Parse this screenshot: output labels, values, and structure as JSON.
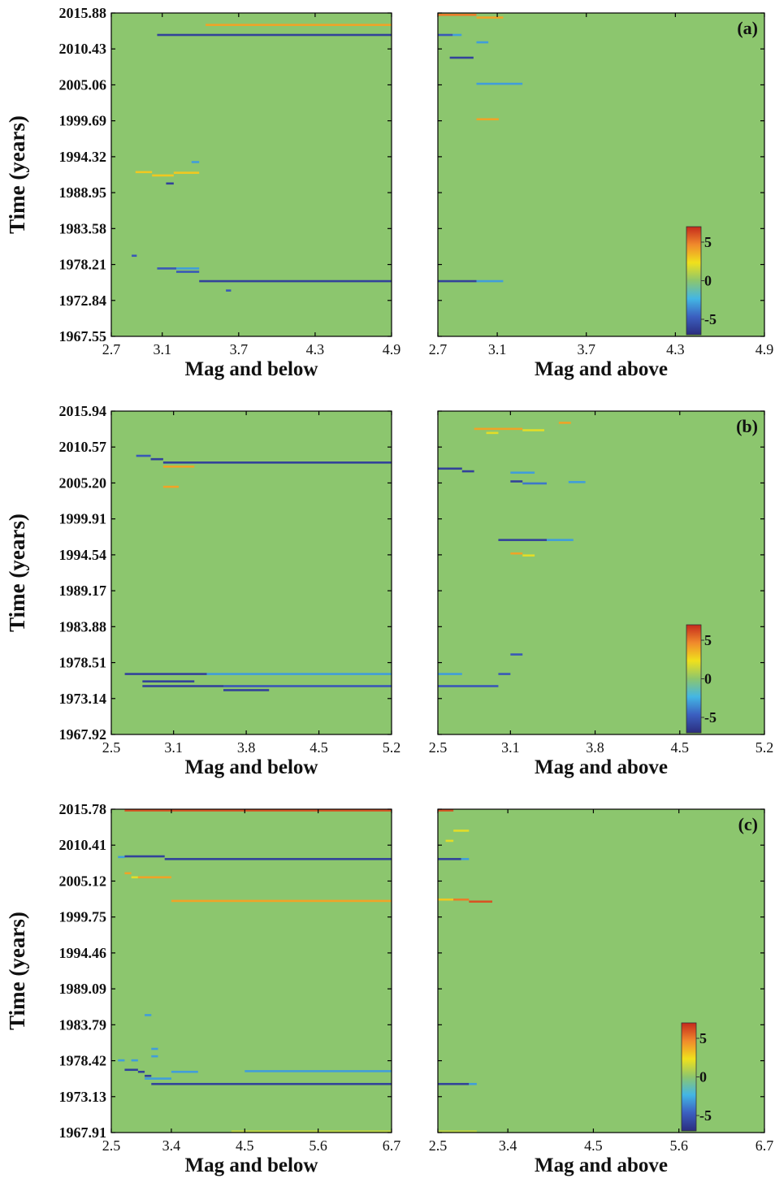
{
  "figure": {
    "ylabel": "Time (years)",
    "xlabel_left": "Mag and below",
    "xlabel_right": "Mag and above"
  },
  "colormap": {
    "stops": [
      "#2b2d7e",
      "#3b5fc0",
      "#43b6e4",
      "#8cc66e",
      "#f0e11c",
      "#f08a2c",
      "#c52a1c"
    ],
    "background": "#8cc66e"
  },
  "chart_data": [
    {
      "type": "heatmap",
      "panel": "a",
      "side": "below",
      "panel_label": "",
      "xlabel": "Mag and below",
      "ylabel": "Time (years)",
      "xlim": [
        2.7,
        4.9
      ],
      "xticks": [
        "2.7",
        "3.1",
        "3.7",
        "4.3",
        "4.9"
      ],
      "ylim": [
        1967.55,
        2015.88
      ],
      "yticks": [
        "1967.55",
        "1972.84",
        "1978.21",
        "1983.58",
        "1988.95",
        "1994.32",
        "1999.69",
        "2005.06",
        "2010.43",
        "2015.88"
      ],
      "segments": [
        {
          "x0": 3.44,
          "x1": 4.9,
          "y": 2014.1,
          "v": 4
        },
        {
          "x0": 3.06,
          "x1": 4.9,
          "y": 2012.6,
          "v": -6
        },
        {
          "x0": 3.33,
          "x1": 3.39,
          "y": 1993.6,
          "v": -3
        },
        {
          "x0": 2.89,
          "x1": 3.02,
          "y": 1992.1,
          "v": 3
        },
        {
          "x0": 3.02,
          "x1": 3.19,
          "y": 1991.6,
          "v": 3
        },
        {
          "x0": 3.19,
          "x1": 3.39,
          "y": 1992.0,
          "v": 3
        },
        {
          "x0": 3.13,
          "x1": 3.19,
          "y": 1990.4,
          "v": -6
        },
        {
          "x0": 2.86,
          "x1": 2.9,
          "y": 1979.6,
          "v": -5
        },
        {
          "x0": 3.06,
          "x1": 3.21,
          "y": 1977.7,
          "v": -5
        },
        {
          "x0": 3.21,
          "x1": 3.39,
          "y": 1977.2,
          "v": -5
        },
        {
          "x0": 3.21,
          "x1": 3.39,
          "y": 1977.7,
          "v": -3
        },
        {
          "x0": 3.39,
          "x1": 4.9,
          "y": 1975.8,
          "v": -6
        },
        {
          "x0": 3.6,
          "x1": 3.64,
          "y": 1974.4,
          "v": -5
        }
      ]
    },
    {
      "type": "heatmap",
      "panel": "a",
      "side": "above",
      "panel_label": "(a)",
      "xlabel": "Mag and above",
      "ylabel": "",
      "xlim": [
        2.7,
        4.9
      ],
      "xticks": [
        "2.7",
        "3.1",
        "3.7",
        "4.3",
        "4.9"
      ],
      "ylim": [
        1967.55,
        2015.88
      ],
      "segments": [
        {
          "x0": 2.7,
          "x1": 2.96,
          "y": 2015.6,
          "v": 5
        },
        {
          "x0": 2.96,
          "x1": 3.14,
          "y": 2015.2,
          "v": 4
        },
        {
          "x0": 2.7,
          "x1": 2.8,
          "y": 2012.6,
          "v": -5
        },
        {
          "x0": 2.8,
          "x1": 2.86,
          "y": 2012.6,
          "v": -3
        },
        {
          "x0": 2.96,
          "x1": 3.04,
          "y": 2011.5,
          "v": -3
        },
        {
          "x0": 2.78,
          "x1": 2.94,
          "y": 2009.2,
          "v": -6
        },
        {
          "x0": 2.96,
          "x1": 3.27,
          "y": 2005.3,
          "v": -3
        },
        {
          "x0": 2.96,
          "x1": 3.11,
          "y": 2000.0,
          "v": 4
        },
        {
          "x0": 2.7,
          "x1": 2.96,
          "y": 1975.8,
          "v": -6
        },
        {
          "x0": 2.96,
          "x1": 3.14,
          "y": 1975.8,
          "v": -3
        }
      ],
      "colorbar": {
        "min": -7,
        "max": 7,
        "ticks": [
          "5",
          "0",
          "-5"
        ]
      }
    },
    {
      "type": "heatmap",
      "panel": "b",
      "side": "below",
      "panel_label": "",
      "xlabel": "Mag and below",
      "ylabel": "Time (years)",
      "xlim": [
        2.5,
        5.2
      ],
      "xticks": [
        "2.5",
        "3.1",
        "3.8",
        "4.5",
        "5.2"
      ],
      "ylim": [
        1967.92,
        2015.94
      ],
      "yticks": [
        "1967.92",
        "1973.14",
        "1978.51",
        "1983.88",
        "1989.17",
        "1994.54",
        "1999.91",
        "2005.20",
        "2010.57",
        "2015.94"
      ],
      "segments": [
        {
          "x0": 2.74,
          "x1": 2.88,
          "y": 2009.3,
          "v": -5
        },
        {
          "x0": 2.88,
          "x1": 3.0,
          "y": 2008.8,
          "v": -6
        },
        {
          "x0": 3.0,
          "x1": 5.2,
          "y": 2008.3,
          "v": -6
        },
        {
          "x0": 3.0,
          "x1": 3.3,
          "y": 2007.7,
          "v": 4
        },
        {
          "x0": 3.0,
          "x1": 3.15,
          "y": 2004.7,
          "v": 4
        },
        {
          "x0": 2.63,
          "x1": 3.42,
          "y": 1976.9,
          "v": -6
        },
        {
          "x0": 3.42,
          "x1": 5.2,
          "y": 1976.9,
          "v": -3
        },
        {
          "x0": 2.8,
          "x1": 3.3,
          "y": 1975.8,
          "v": -6
        },
        {
          "x0": 2.8,
          "x1": 3.58,
          "y": 1975.1,
          "v": -6
        },
        {
          "x0": 3.58,
          "x1": 5.2,
          "y": 1975.1,
          "v": -5
        },
        {
          "x0": 3.58,
          "x1": 4.02,
          "y": 1974.5,
          "v": -6
        }
      ]
    },
    {
      "type": "heatmap",
      "panel": "b",
      "side": "above",
      "panel_label": "(b)",
      "xlabel": "Mag and above",
      "ylabel": "",
      "xlim": [
        2.5,
        5.2
      ],
      "xticks": [
        "2.5",
        "3.1",
        "3.8",
        "4.5",
        "5.2"
      ],
      "ylim": [
        1967.92,
        2015.94
      ],
      "segments": [
        {
          "x0": 2.8,
          "x1": 3.2,
          "y": 2013.3,
          "v": 4
        },
        {
          "x0": 2.9,
          "x1": 3.0,
          "y": 2012.7,
          "v": 2
        },
        {
          "x0": 3.2,
          "x1": 3.38,
          "y": 2013.1,
          "v": 2
        },
        {
          "x0": 3.5,
          "x1": 3.6,
          "y": 2014.2,
          "v": 4
        },
        {
          "x0": 2.5,
          "x1": 2.7,
          "y": 2007.4,
          "v": -6
        },
        {
          "x0": 2.7,
          "x1": 2.8,
          "y": 2007.0,
          "v": -6
        },
        {
          "x0": 3.1,
          "x1": 3.3,
          "y": 2006.8,
          "v": -3
        },
        {
          "x0": 3.1,
          "x1": 3.2,
          "y": 2005.5,
          "v": -6
        },
        {
          "x0": 3.2,
          "x1": 3.4,
          "y": 2005.2,
          "v": -4
        },
        {
          "x0": 3.58,
          "x1": 3.72,
          "y": 2005.4,
          "v": -3
        },
        {
          "x0": 3.0,
          "x1": 3.4,
          "y": 1996.8,
          "v": -6
        },
        {
          "x0": 3.4,
          "x1": 3.62,
          "y": 1996.8,
          "v": -3
        },
        {
          "x0": 3.1,
          "x1": 3.2,
          "y": 1994.8,
          "v": 4
        },
        {
          "x0": 3.2,
          "x1": 3.3,
          "y": 1994.5,
          "v": 2
        },
        {
          "x0": 3.1,
          "x1": 3.2,
          "y": 1979.8,
          "v": -5
        },
        {
          "x0": 2.5,
          "x1": 2.7,
          "y": 1976.9,
          "v": -3
        },
        {
          "x0": 3.0,
          "x1": 3.1,
          "y": 1976.9,
          "v": -5
        },
        {
          "x0": 2.5,
          "x1": 3.0,
          "y": 1975.1,
          "v": -5
        }
      ],
      "colorbar": {
        "min": -7,
        "max": 7,
        "ticks": [
          "5",
          "0",
          "-5"
        ]
      }
    },
    {
      "type": "heatmap",
      "panel": "c",
      "side": "below",
      "panel_label": "",
      "xlabel": "Mag and below",
      "ylabel": "Time (years)",
      "xlim": [
        2.5,
        6.7
      ],
      "xticks": [
        "2.5",
        "3.4",
        "4.5",
        "5.6",
        "6.7"
      ],
      "ylim": [
        1967.91,
        2015.78
      ],
      "yticks": [
        "1967.91",
        "1973.13",
        "1978.42",
        "1983.79",
        "1989.09",
        "1994.46",
        "1999.75",
        "2005.12",
        "2010.41",
        "2015.78"
      ],
      "segments": [
        {
          "x0": 2.7,
          "x1": 6.7,
          "y": 2015.6,
          "v": 6
        },
        {
          "x0": 2.6,
          "x1": 2.7,
          "y": 2008.7,
          "v": -3
        },
        {
          "x0": 2.7,
          "x1": 3.3,
          "y": 2008.8,
          "v": -6
        },
        {
          "x0": 3.3,
          "x1": 6.7,
          "y": 2008.4,
          "v": -6
        },
        {
          "x0": 2.7,
          "x1": 2.8,
          "y": 2006.3,
          "v": 4
        },
        {
          "x0": 2.8,
          "x1": 2.9,
          "y": 2005.7,
          "v": 2
        },
        {
          "x0": 2.9,
          "x1": 3.4,
          "y": 2005.7,
          "v": 4
        },
        {
          "x0": 3.4,
          "x1": 6.7,
          "y": 2002.2,
          "v": 4
        },
        {
          "x0": 3.0,
          "x1": 3.1,
          "y": 1985.3,
          "v": -3
        },
        {
          "x0": 3.1,
          "x1": 3.2,
          "y": 1980.3,
          "v": -3
        },
        {
          "x0": 3.1,
          "x1": 3.2,
          "y": 1979.2,
          "v": -3
        },
        {
          "x0": 2.6,
          "x1": 2.7,
          "y": 1978.6,
          "v": -3
        },
        {
          "x0": 2.8,
          "x1": 2.9,
          "y": 1978.6,
          "v": -3
        },
        {
          "x0": 2.7,
          "x1": 2.9,
          "y": 1977.2,
          "v": -6
        },
        {
          "x0": 2.9,
          "x1": 3.0,
          "y": 1976.9,
          "v": -6
        },
        {
          "x0": 3.0,
          "x1": 3.1,
          "y": 1976.3,
          "v": -6
        },
        {
          "x0": 3.0,
          "x1": 3.4,
          "y": 1975.9,
          "v": -3
        },
        {
          "x0": 3.4,
          "x1": 3.8,
          "y": 1976.9,
          "v": -3
        },
        {
          "x0": 4.5,
          "x1": 6.7,
          "y": 1977.0,
          "v": -3
        },
        {
          "x0": 3.1,
          "x1": 6.7,
          "y": 1975.1,
          "v": -6
        },
        {
          "x0": 4.3,
          "x1": 6.7,
          "y": 1968.1,
          "v": 1
        }
      ]
    },
    {
      "type": "heatmap",
      "panel": "c",
      "side": "above",
      "panel_label": "(c)",
      "xlabel": "Mag and above",
      "ylabel": "",
      "xlim": [
        2.5,
        6.7
      ],
      "xticks": [
        "2.5",
        "3.4",
        "4.5",
        "5.6",
        "6.7"
      ],
      "ylim": [
        1967.91,
        2015.78
      ],
      "segments": [
        {
          "x0": 2.5,
          "x1": 2.7,
          "y": 2015.6,
          "v": 6
        },
        {
          "x0": 2.7,
          "x1": 2.9,
          "y": 2012.6,
          "v": 2
        },
        {
          "x0": 2.6,
          "x1": 2.7,
          "y": 2011.1,
          "v": 2
        },
        {
          "x0": 2.5,
          "x1": 2.8,
          "y": 2008.4,
          "v": -6
        },
        {
          "x0": 2.8,
          "x1": 2.9,
          "y": 2008.4,
          "v": -3
        },
        {
          "x0": 2.5,
          "x1": 2.7,
          "y": 2002.4,
          "v": 3
        },
        {
          "x0": 2.7,
          "x1": 2.9,
          "y": 2002.4,
          "v": 5
        },
        {
          "x0": 2.9,
          "x1": 3.2,
          "y": 2002.1,
          "v": 6
        },
        {
          "x0": 2.5,
          "x1": 2.9,
          "y": 1975.1,
          "v": -6
        },
        {
          "x0": 2.9,
          "x1": 3.0,
          "y": 1975.1,
          "v": -3
        },
        {
          "x0": 2.5,
          "x1": 3.0,
          "y": 1968.1,
          "v": 1
        }
      ],
      "colorbar": {
        "min": -7,
        "max": 7,
        "ticks": [
          "5",
          "0",
          "-5"
        ]
      }
    }
  ]
}
